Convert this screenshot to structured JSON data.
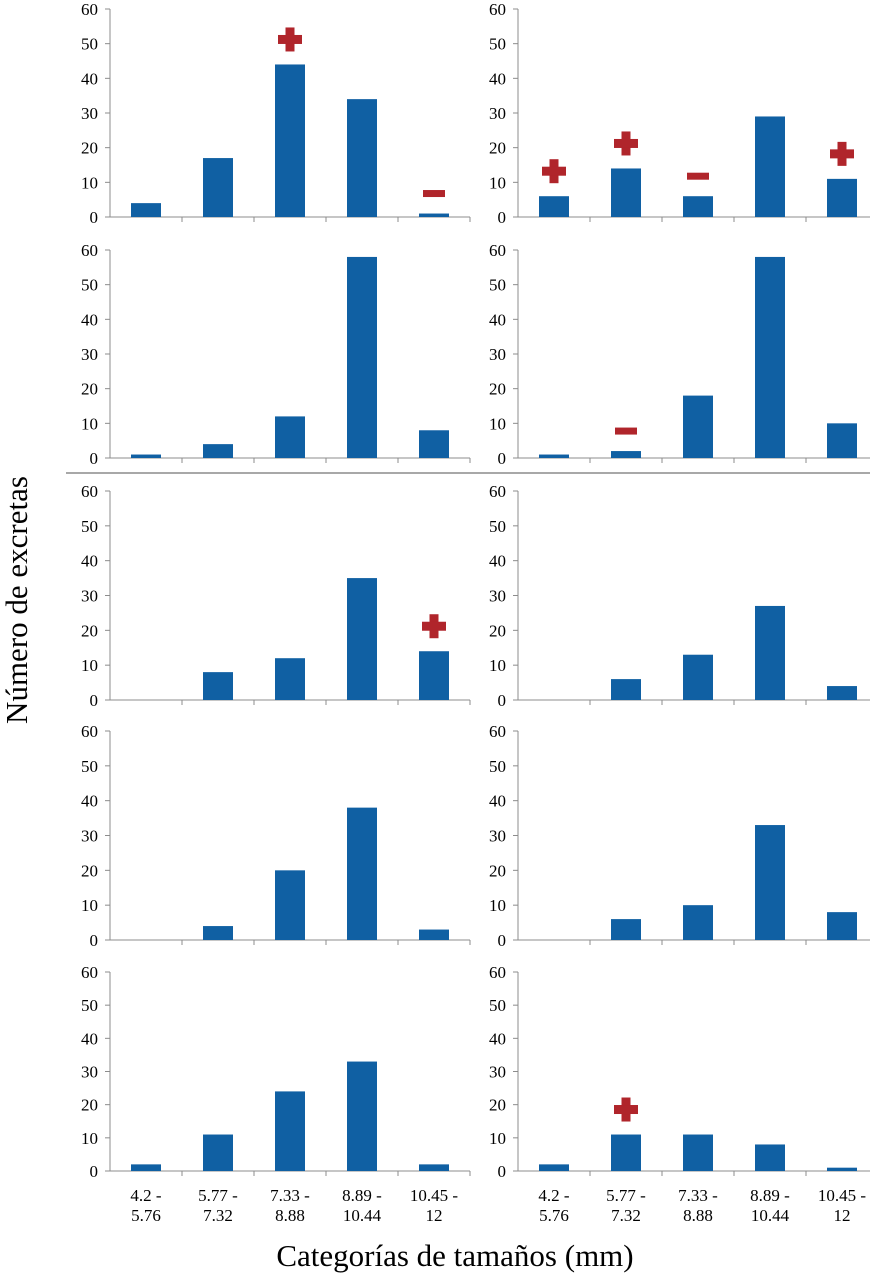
{
  "figure": {
    "ylabel": "Número de excretas",
    "xlabel": "Categorías de tamaños (mm)"
  },
  "chart_data": {
    "type": "bar",
    "layout": "5 rows x 2 columns of small-multiple bar charts",
    "categories": [
      [
        "4.2 -",
        "5.76"
      ],
      [
        "5.77 -",
        "7.32"
      ],
      [
        "7.33 -",
        "8.88"
      ],
      [
        "8.89 -",
        "10.44"
      ],
      [
        "10.45 -",
        "12"
      ]
    ],
    "ylim": [
      0,
      60
    ],
    "yticks": [
      0,
      10,
      20,
      30,
      40,
      50,
      60
    ],
    "bar_color": "#1060a3",
    "marker_color": "#b0252b",
    "panels": [
      {
        "values": [
          4,
          17,
          44,
          34,
          1
        ],
        "markers": [
          "",
          "",
          "+",
          "",
          "-"
        ]
      },
      {
        "values": [
          6,
          14,
          6,
          29,
          11
        ],
        "markers": [
          "+",
          "+",
          "-",
          "",
          "+"
        ]
      },
      {
        "values": [
          1,
          4,
          12,
          58,
          8
        ],
        "markers": [
          "",
          "",
          "",
          "",
          ""
        ]
      },
      {
        "values": [
          1,
          2,
          18,
          58,
          10
        ],
        "markers": [
          "",
          "-",
          "",
          "",
          ""
        ]
      },
      {
        "values": [
          0,
          8,
          12,
          35,
          14
        ],
        "markers": [
          "",
          "",
          "",
          "",
          "+"
        ]
      },
      {
        "values": [
          0,
          6,
          13,
          27,
          4
        ],
        "markers": [
          "",
          "",
          "",
          "",
          ""
        ]
      },
      {
        "values": [
          0,
          4,
          20,
          38,
          3
        ],
        "markers": [
          "",
          "",
          "",
          "",
          ""
        ]
      },
      {
        "values": [
          0,
          6,
          10,
          33,
          8
        ],
        "markers": [
          "",
          "",
          "",
          "",
          ""
        ]
      },
      {
        "values": [
          2,
          11,
          24,
          33,
          2
        ],
        "markers": [
          "",
          "",
          "",
          "",
          ""
        ]
      },
      {
        "values": [
          2,
          11,
          11,
          8,
          1
        ],
        "markers": [
          "",
          "+",
          "",
          "",
          ""
        ]
      }
    ]
  }
}
